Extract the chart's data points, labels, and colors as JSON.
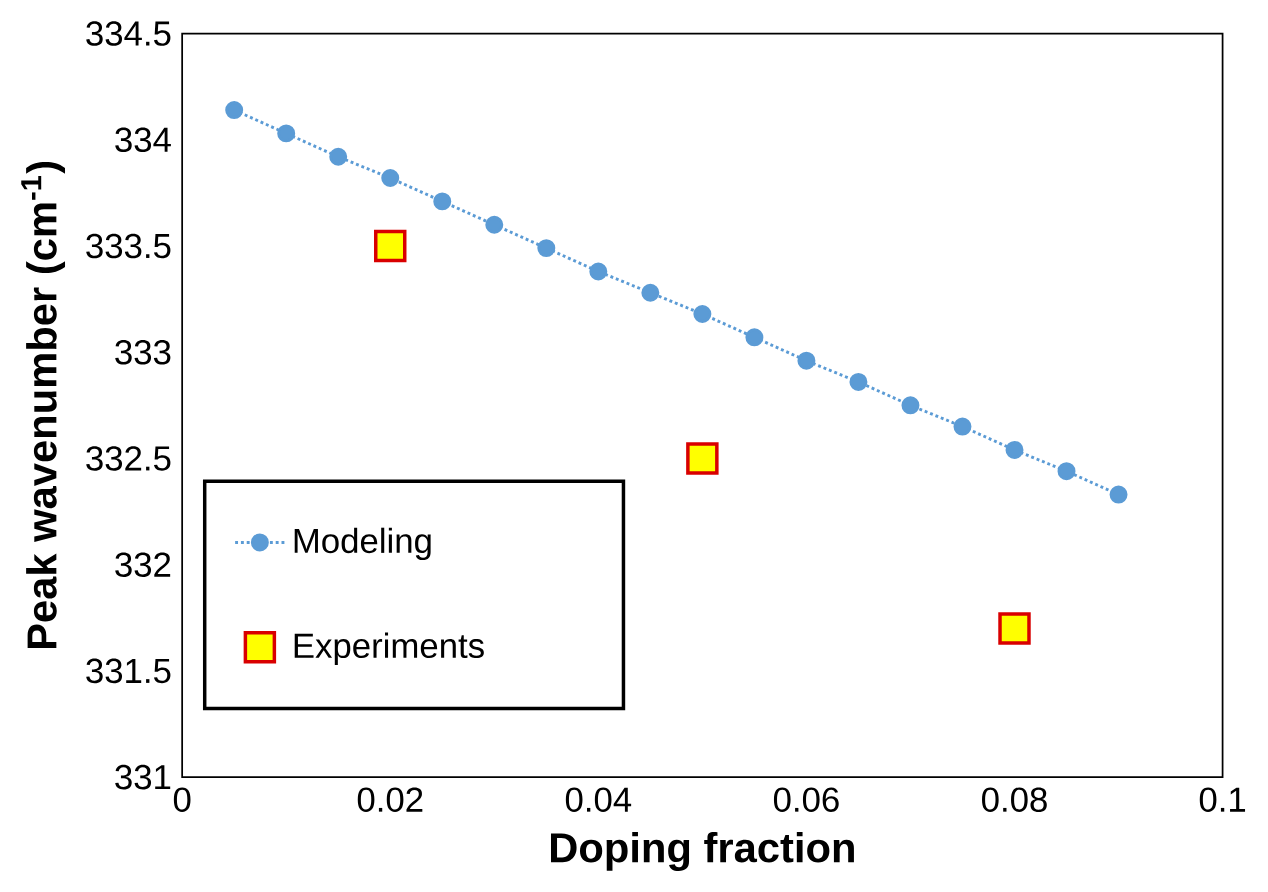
{
  "chart_data": {
    "type": "scatter",
    "xlabel": "Doping fraction",
    "ylabel": "Peak wavenumber (cm$^{-1}$)",
    "xlim": [
      0,
      0.1
    ],
    "ylim": [
      331,
      334.5
    ],
    "xticks": [
      0,
      0.02,
      0.04,
      0.06,
      0.08,
      0.1
    ],
    "yticks": [
      331,
      331.5,
      332,
      332.5,
      333,
      333.5,
      334,
      334.5
    ],
    "legend": "bottom left",
    "series": [
      {
        "name": "Modeling",
        "type": "line",
        "color": "#5b9bd5",
        "marker": "circle",
        "line_style": "dotted",
        "x": [
          0.005,
          0.01,
          0.015,
          0.02,
          0.025,
          0.03,
          0.035,
          0.04,
          0.045,
          0.05,
          0.055,
          0.06,
          0.065,
          0.07,
          0.075,
          0.08,
          0.085,
          0.09
        ],
        "values": [
          334.14,
          334.03,
          333.92,
          333.82,
          333.71,
          333.6,
          333.49,
          333.38,
          333.28,
          333.18,
          333.07,
          332.96,
          332.86,
          332.75,
          332.65,
          332.54,
          332.44,
          332.33
        ]
      },
      {
        "name": "Experiments",
        "color": "#ffff00",
        "marker": "square",
        "x": [
          0.02,
          0.05,
          0.08
        ],
        "values": [
          333.5,
          332.5,
          331.7
        ]
      }
    ]
  }
}
